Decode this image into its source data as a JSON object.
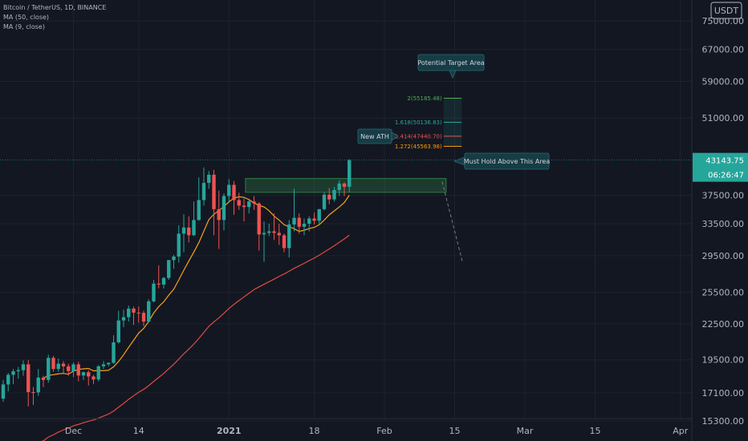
{
  "legend": {
    "symbol": "Bitcoin / TetherUS, 1D, BINANCE",
    "ma50": "MA (50, close)",
    "ma9": "MA (9, close)"
  },
  "currency_badge": "USDT",
  "price_tag": {
    "value": "43143.75",
    "timer": "06:26:47"
  },
  "annotations": {
    "new_ath": "New ATH",
    "target": "Potential Target Area",
    "hold": "Must Hold Above This Area"
  },
  "fib_levels": [
    {
      "label": "2(55185.48)",
      "value": 55185.48,
      "color": "#4caf50"
    },
    {
      "label": "1.618(50136.83)",
      "value": 50136.83,
      "color": "#26a69a"
    },
    {
      "label": "1.414(47440.70)",
      "value": 47440.7,
      "color": "#ef5350"
    },
    {
      "label": "1.272(45563.98)",
      "value": 45563.98,
      "color": "#ff9800"
    }
  ],
  "colors": {
    "background": "#131722",
    "up": "#26a69a",
    "down": "#ef5350",
    "ma9": "#f7a21b",
    "ma50": "#e04b40",
    "zone": "#1b4d2e"
  },
  "chart_data": {
    "type": "candlestick",
    "y_axis_scale": "log",
    "ylim": [
      14300,
      80000
    ],
    "y_ticks": [
      "15300.00",
      "17100.00",
      "19500.00",
      "22500.00",
      "25500.00",
      "29500.00",
      "33500.00",
      "37500.00",
      "43143.75",
      "51000.00",
      "59000.00",
      "67000.00",
      "75000.00"
    ],
    "y_tick_values": [
      15300,
      17100,
      19500,
      22500,
      25500,
      29500,
      33500,
      37500,
      51000,
      59000,
      67000,
      75000
    ],
    "x_ticks": [
      "Dec",
      "14",
      "2021",
      "18",
      "Feb",
      "15",
      "Mar",
      "15",
      "Apr"
    ],
    "x_tick_dates": [
      "2020-12-01",
      "2020-12-14",
      "2021-01-01",
      "2021-01-18",
      "2021-02-01",
      "2021-02-15",
      "2021-03-01",
      "2021-03-15",
      "2021-04-01"
    ],
    "first_date": "2020-11-17",
    "candles": [
      [
        16710,
        18000,
        16500,
        17680
      ],
      [
        17680,
        18500,
        17200,
        18370
      ],
      [
        18370,
        18800,
        17700,
        18630
      ],
      [
        18630,
        18950,
        18100,
        18710
      ],
      [
        18710,
        19450,
        18300,
        19150
      ],
      [
        19150,
        19480,
        16200,
        17150
      ],
      [
        17150,
        17500,
        16300,
        17130
      ],
      [
        17130,
        18800,
        16900,
        18170
      ],
      [
        18170,
        18300,
        17500,
        18000
      ],
      [
        18000,
        19900,
        17800,
        19650
      ],
      [
        19650,
        19800,
        18600,
        18800
      ],
      [
        18800,
        19600,
        18600,
        19200
      ],
      [
        19200,
        19400,
        18500,
        19000
      ],
      [
        19000,
        19200,
        18300,
        18640
      ],
      [
        18640,
        19300,
        18200,
        19150
      ],
      [
        19150,
        19350,
        17900,
        18320
      ],
      [
        18320,
        18600,
        18000,
        18560
      ],
      [
        18560,
        18700,
        17600,
        18250
      ],
      [
        18250,
        18350,
        17700,
        18030
      ],
      [
        18030,
        19100,
        17900,
        19000
      ],
      [
        19000,
        19400,
        18800,
        19150
      ],
      [
        19150,
        19300,
        19000,
        19270
      ],
      [
        19270,
        21500,
        19200,
        20900
      ],
      [
        20900,
        23700,
        20800,
        22800
      ],
      [
        22800,
        23800,
        22200,
        23100
      ],
      [
        23100,
        24200,
        22700,
        23900
      ],
      [
        23900,
        24100,
        22400,
        23520
      ],
      [
        23520,
        24100,
        22600,
        23500
      ],
      [
        23500,
        23700,
        22300,
        22700
      ],
      [
        22700,
        24800,
        22600,
        24600
      ],
      [
        24600,
        26800,
        24500,
        26400
      ],
      [
        26400,
        28400,
        25900,
        26300
      ],
      [
        26300,
        27100,
        25900,
        27000
      ],
      [
        27000,
        29000,
        26800,
        28990
      ],
      [
        28990,
        29600,
        28000,
        29400
      ],
      [
        29400,
        33300,
        28700,
        32200
      ],
      [
        32200,
        34800,
        29900,
        33000
      ],
      [
        33000,
        34500,
        31100,
        32000
      ],
      [
        32000,
        36600,
        31900,
        34000
      ],
      [
        34000,
        40300,
        33900,
        36800
      ],
      [
        36800,
        41900,
        36000,
        39400
      ],
      [
        39400,
        41300,
        38500,
        40700
      ],
      [
        40700,
        41500,
        32000,
        35500
      ],
      [
        35500,
        38200,
        30300,
        34000
      ],
      [
        34000,
        37800,
        32600,
        37400
      ],
      [
        37400,
        40000,
        36400,
        39100
      ],
      [
        39100,
        39700,
        34700,
        36800
      ],
      [
        36800,
        37900,
        35400,
        36000
      ],
      [
        36000,
        37000,
        33800,
        35800
      ],
      [
        35800,
        36800,
        34900,
        36600
      ],
      [
        36600,
        37400,
        35400,
        36300
      ],
      [
        36300,
        36500,
        30100,
        32100
      ],
      [
        32100,
        33800,
        28800,
        32300
      ],
      [
        32300,
        33500,
        31900,
        32500
      ],
      [
        32500,
        34900,
        31400,
        32300
      ],
      [
        32300,
        33500,
        30800,
        32000
      ],
      [
        32000,
        32200,
        29900,
        30400
      ],
      [
        30400,
        34000,
        29300,
        33400
      ],
      [
        33400,
        38500,
        32500,
        34300
      ],
      [
        34300,
        34900,
        32200,
        33100
      ],
      [
        33100,
        34200,
        32000,
        33500
      ],
      [
        33500,
        34500,
        32500,
        34200
      ],
      [
        34200,
        35000,
        33400,
        33900
      ],
      [
        33900,
        35500,
        33500,
        35500
      ],
      [
        35500,
        37900,
        35300,
        37600
      ],
      [
        37600,
        38600,
        36200,
        36900
      ],
      [
        36900,
        38800,
        36600,
        38300
      ],
      [
        38300,
        39800,
        37400,
        39300
      ],
      [
        39300,
        39500,
        37400,
        38800
      ],
      [
        38800,
        43300,
        38000,
        43143.75
      ]
    ]
  }
}
